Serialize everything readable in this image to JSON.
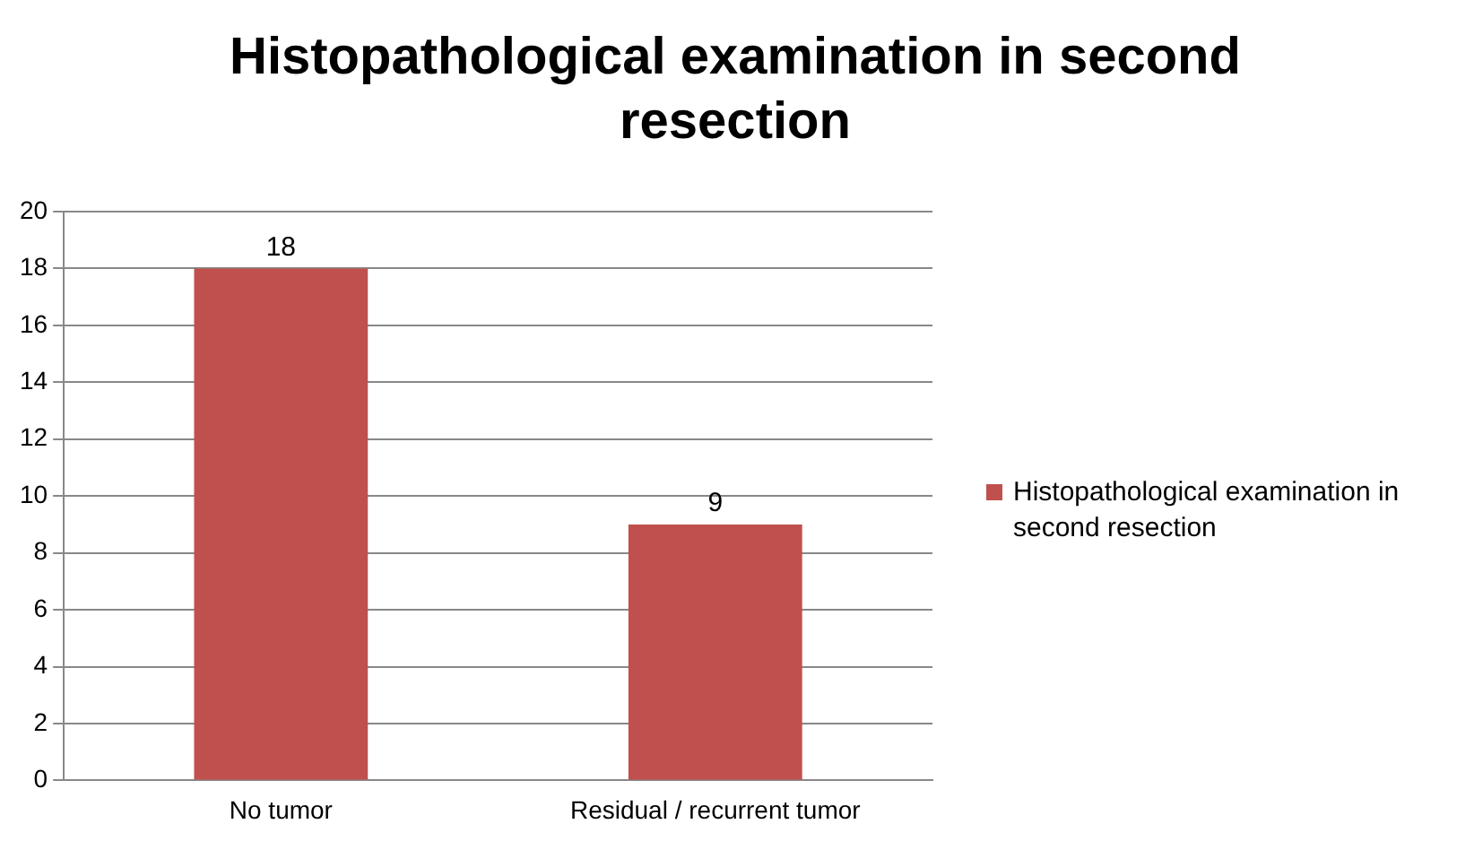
{
  "chart_data": {
    "type": "bar",
    "title": "Histopathological examination in second resection",
    "categories": [
      "No tumor",
      "Residual / recurrent tumor"
    ],
    "series": [
      {
        "name": "Histopathological examination in second resection",
        "color": "#c0504d",
        "values": [
          18,
          9
        ]
      }
    ],
    "ylim": [
      0,
      20
    ],
    "yticks": [
      0,
      2,
      4,
      6,
      8,
      10,
      12,
      14,
      16,
      18,
      20
    ],
    "grid": "y",
    "legend": "right",
    "data_labels": true
  }
}
